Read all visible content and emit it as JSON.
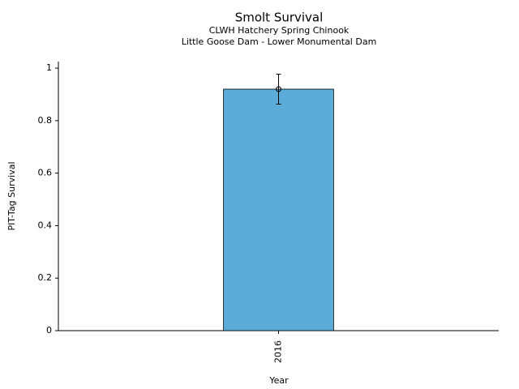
{
  "chart_data": {
    "type": "bar",
    "title": "Smolt Survival",
    "subtitle": [
      "CLWH Hatchery Spring Chinook",
      "Little Goose Dam - Lower Monumental Dam"
    ],
    "x_label": "Year",
    "y_label": "PIT-Tag Survival",
    "categories": [
      "2016"
    ],
    "values": [
      0.92
    ],
    "errors": [
      0.057
    ],
    "color": "#5bacd8",
    "ylim": [
      0,
      1.025
    ],
    "yticks": [
      0,
      0.2,
      0.4,
      0.6,
      0.8,
      1
    ],
    "grid": false
  }
}
